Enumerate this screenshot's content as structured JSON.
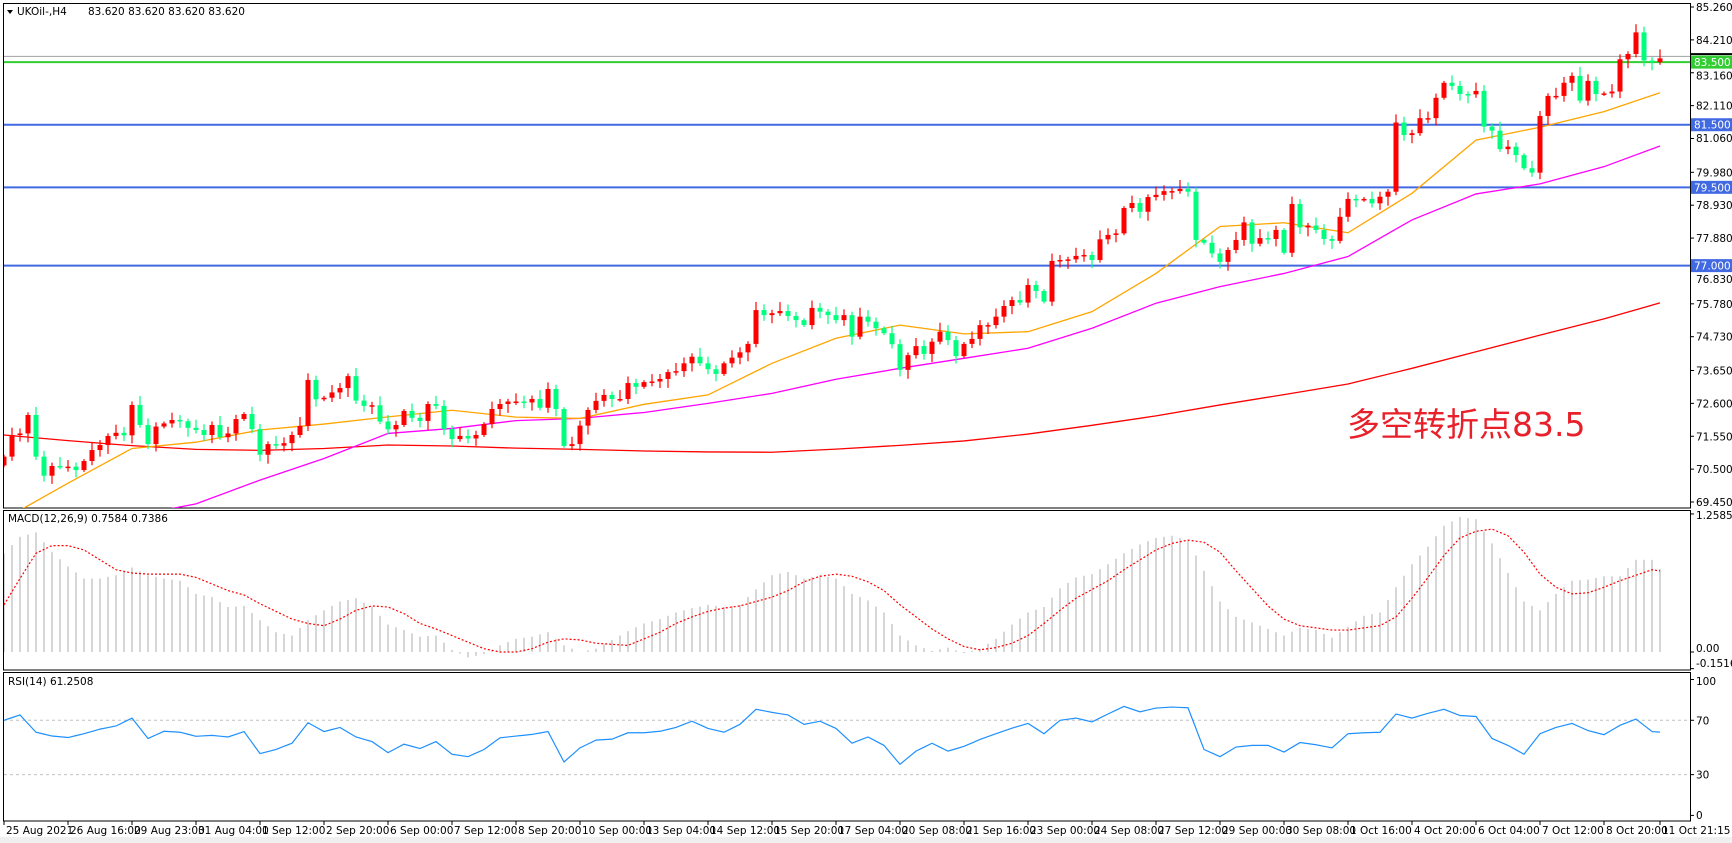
{
  "header": {
    "menu_icon": "triangle-down-icon",
    "symbol": "UKOil-,H4",
    "ohlc": "83.620 83.620 83.620 83.620"
  },
  "annotation": {
    "text": "多空转折点83.5",
    "color": "#e8202a"
  },
  "colors": {
    "bull_candle": "#ff0000",
    "bear_candle": "#00ff7f",
    "ma_fast": "#ffa500",
    "ma_mid": "#ff00ff",
    "ma_slow": "#ff0000",
    "level_line": "#4169e1",
    "pivot_line": "#32cd32",
    "macd_hist": "#c0c0c0",
    "macd_signal": "#ff0000",
    "rsi": "#1e90ff",
    "bid_line": "#a0a0a0"
  },
  "chart_data": [
    {
      "type": "candlestick",
      "panel": "main",
      "title": "UKOil-,H4",
      "ylim": [
        69.45,
        85.26
      ],
      "y_ticks": [
        "85.260",
        "84.210",
        "83.160",
        "82.110",
        "81.060",
        "79.980",
        "78.930",
        "77.880",
        "76.830",
        "75.780",
        "74.730",
        "73.650",
        "72.600",
        "71.550",
        "70.500",
        "69.450"
      ],
      "x_tick_labels": [
        "25 Aug 2021",
        "26 Aug 16:00",
        "29 Aug 23:00",
        "31 Aug 04:00",
        "1 Sep 12:00",
        "2 Sep 20:00",
        "6 Sep 00:00",
        "7 Sep 12:00",
        "8 Sep 20:00",
        "10 Sep 00:00",
        "13 Sep 04:00",
        "14 Sep 12:00",
        "15 Sep 20:00",
        "17 Sep 04:00",
        "20 Sep 08:00",
        "21 Sep 16:00",
        "23 Sep 00:00",
        "24 Sep 08:00",
        "27 Sep 12:00",
        "29 Sep 00:00",
        "30 Sep 08:00",
        "1 Oct 16:00",
        "4 Oct 20:00",
        "6 Oct 04:00",
        "7 Oct 12:00",
        "8 Oct 20:00",
        "11 Oct 21:15"
      ],
      "close": [
        70.9,
        71.59,
        71.64,
        72.23,
        70.9,
        70.29,
        70.6,
        70.58,
        70.58,
        70.47,
        70.76,
        71.11,
        71.27,
        71.56,
        71.66,
        71.58,
        72.55,
        71.91,
        71.3,
        71.86,
        71.96,
        72.07,
        72.03,
        71.82,
        71.75,
        71.59,
        71.91,
        71.52,
        71.64,
        72.1,
        72.26,
        71.78,
        70.96,
        71.3,
        71.25,
        71.33,
        71.59,
        71.88,
        73.35,
        72.73,
        72.78,
        72.95,
        73.09,
        73.47,
        72.69,
        72.52,
        72.54,
        72.02,
        71.77,
        71.91,
        72.36,
        72.14,
        72.04,
        72.58,
        72.52,
        71.78,
        71.46,
        71.56,
        71.48,
        71.59,
        71.94,
        72.42,
        72.58,
        72.66,
        72.66,
        72.63,
        72.74,
        72.46,
        73.06,
        72.42,
        71.24,
        71.3,
        71.89,
        72.39,
        72.68,
        72.87,
        72.74,
        72.74,
        73.25,
        73.13,
        73.28,
        73.3,
        73.38,
        73.6,
        73.63,
        73.88,
        74.09,
        73.88,
        73.69,
        73.54,
        73.88,
        74.06,
        74.23,
        74.5,
        75.58,
        75.42,
        75.48,
        75.55,
        75.39,
        75.26,
        75.1,
        75.65,
        75.53,
        75.42,
        75.26,
        75.42,
        74.73,
        75.37,
        75.21,
        75.0,
        74.84,
        74.49,
        73.67,
        74.14,
        74.43,
        74.18,
        74.57,
        74.89,
        74.62,
        74.11,
        74.5,
        74.66,
        75.1,
        75.1,
        75.37,
        75.71,
        75.9,
        75.82,
        76.38,
        76.19,
        75.85,
        77.15,
        77.18,
        77.2,
        77.31,
        77.34,
        77.18,
        77.84,
        77.98,
        78.03,
        78.84,
        79.0,
        78.72,
        79.19,
        79.26,
        79.38,
        79.38,
        79.45,
        79.36,
        77.82,
        77.73,
        77.39,
        77.12,
        77.5,
        77.82,
        78.38,
        77.7,
        77.88,
        77.85,
        78.14,
        77.41,
        78.97,
        78.22,
        78.28,
        78.14,
        77.85,
        77.79,
        78.56,
        79.13,
        79.1,
        79.13,
        78.99,
        79.2,
        79.36,
        81.57,
        81.17,
        81.23,
        81.71,
        81.71,
        82.36,
        82.84,
        82.74,
        82.48,
        82.47,
        82.58,
        81.44,
        81.31,
        80.72,
        80.8,
        80.53,
        80.11,
        79.97,
        81.78,
        82.42,
        82.42,
        82.84,
        83.06,
        82.27,
        82.9,
        82.48,
        82.5,
        82.56,
        83.59,
        83.76,
        84.45,
        83.55,
        83.5,
        83.62
      ],
      "moving_averages_at_x_ticks": {
        "fast": [
          68.9,
          70.05,
          71.16,
          71.36,
          71.75,
          71.94,
          72.17,
          72.38,
          72.16,
          72.12,
          72.57,
          72.87,
          73.88,
          74.68,
          75.1,
          74.82,
          74.89,
          75.53,
          76.75,
          78.25,
          78.37,
          78.05,
          79.31,
          81.01,
          81.42,
          81.92,
          82.52
        ],
        "mid": [
          67.5,
          68.3,
          69.0,
          69.39,
          70.15,
          70.84,
          71.64,
          71.8,
          72.05,
          72.12,
          72.31,
          72.6,
          72.92,
          73.37,
          73.72,
          74.04,
          74.36,
          75.0,
          75.8,
          76.33,
          76.75,
          77.29,
          78.46,
          79.29,
          79.61,
          80.16,
          80.82
        ],
        "slow": [
          71.59,
          71.41,
          71.25,
          71.13,
          71.1,
          71.16,
          71.27,
          71.24,
          71.17,
          71.13,
          71.08,
          71.05,
          71.04,
          71.14,
          71.26,
          71.4,
          71.62,
          71.9,
          72.2,
          72.55,
          72.88,
          73.22,
          73.72,
          74.25,
          74.78,
          75.3,
          75.81
        ]
      },
      "horizontal_levels": [
        {
          "value": 83.5,
          "label": "83.500",
          "kind": "pivot"
        },
        {
          "value": 81.5,
          "label": "81.500",
          "kind": "level"
        },
        {
          "value": 79.5,
          "label": "79.500",
          "kind": "level"
        },
        {
          "value": 77.0,
          "label": "77.000",
          "kind": "level"
        }
      ],
      "bid": 83.62
    },
    {
      "type": "bar+line",
      "panel": "macd",
      "title": "MACD(12,26,9) 0.7584 0.7386",
      "ylim": [
        -0.1516,
        1.2585
      ],
      "y_ticks": [
        "1.2585",
        "0.00",
        "-0.1516"
      ],
      "histogram": [
        0.9,
        1.05,
        1.09,
        0.91,
        0.78,
        0.67,
        0.67,
        0.7,
        0.77,
        0.7,
        0.67,
        0.65,
        0.53,
        0.5,
        0.41,
        0.42,
        0.29,
        0.18,
        0.15,
        0.29,
        0.38,
        0.46,
        0.49,
        0.41,
        0.25,
        0.2,
        0.14,
        0.15,
        0.02,
        -0.05,
        -0.02,
        0.06,
        0.12,
        0.14,
        0.18,
        0.06,
        0.0,
        0.03,
        0.11,
        0.19,
        0.26,
        0.3,
        0.36,
        0.4,
        0.43,
        0.41,
        0.43,
        0.57,
        0.7,
        0.73,
        0.67,
        0.7,
        0.67,
        0.53,
        0.47,
        0.36,
        0.15,
        0.06,
        0.01,
        0.04,
        -0.01,
        0.03,
        0.12,
        0.25,
        0.36,
        0.41,
        0.58,
        0.68,
        0.71,
        0.8,
        0.9,
        0.98,
        1.04,
        1.06,
        1.02,
        0.74,
        0.46,
        0.32,
        0.27,
        0.21,
        0.15,
        0.22,
        0.2,
        0.13,
        0.23,
        0.33,
        0.36,
        0.59,
        0.8,
        0.96,
        1.15,
        1.23,
        1.21,
        0.99,
        0.72,
        0.46,
        0.38,
        0.53,
        0.65,
        0.66,
        0.69,
        0.69,
        0.84,
        0.84,
        0.7584
      ],
      "signal": [
        0.43,
        0.67,
        0.9,
        0.97,
        0.97,
        0.93,
        0.84,
        0.75,
        0.72,
        0.71,
        0.71,
        0.71,
        0.68,
        0.62,
        0.56,
        0.52,
        0.44,
        0.37,
        0.3,
        0.26,
        0.24,
        0.3,
        0.38,
        0.42,
        0.41,
        0.35,
        0.26,
        0.21,
        0.15,
        0.09,
        0.03,
        0.0,
        0.0,
        0.03,
        0.09,
        0.12,
        0.11,
        0.08,
        0.07,
        0.06,
        0.12,
        0.18,
        0.26,
        0.32,
        0.37,
        0.4,
        0.42,
        0.46,
        0.5,
        0.56,
        0.64,
        0.69,
        0.71,
        0.69,
        0.64,
        0.56,
        0.43,
        0.32,
        0.21,
        0.12,
        0.05,
        0.02,
        0.04,
        0.08,
        0.15,
        0.26,
        0.38,
        0.49,
        0.57,
        0.65,
        0.75,
        0.84,
        0.93,
        0.99,
        1.02,
        1.0,
        0.91,
        0.74,
        0.58,
        0.42,
        0.3,
        0.24,
        0.22,
        0.2,
        0.2,
        0.22,
        0.24,
        0.32,
        0.49,
        0.68,
        0.88,
        1.04,
        1.1,
        1.12,
        1.06,
        0.91,
        0.71,
        0.59,
        0.53,
        0.54,
        0.59,
        0.65,
        0.7,
        0.75,
        0.7386
      ]
    },
    {
      "type": "line",
      "panel": "rsi",
      "title": "RSI(14) 61.2508",
      "ylim": [
        0,
        100
      ],
      "y_ticks": [
        "100",
        "70",
        "30",
        "0"
      ],
      "levels": [
        70,
        30
      ],
      "values": [
        70,
        73.9,
        61.2,
        58.4,
        57.3,
        60.1,
        63.5,
        65.8,
        71.6,
        56.6,
        61.9,
        61.2,
        58.2,
        58.9,
        57.7,
        61.7,
        45.5,
        48.5,
        53.1,
        68.2,
        61.7,
        64.7,
        57.7,
        54.3,
        46.2,
        52.4,
        49.2,
        54.3,
        45.0,
        43.2,
        48.5,
        57.1,
        58.4,
        59.6,
        61.7,
        39.3,
        49.7,
        55.4,
        56.1,
        60.8,
        60.8,
        61.9,
        64.7,
        69.3,
        64.0,
        61.2,
        67.0,
        78.1,
        75.8,
        73.9,
        67.0,
        69.3,
        64.0,
        53.1,
        57.7,
        51.5,
        37.6,
        47.3,
        53.1,
        47.3,
        50.8,
        55.9,
        60.1,
        64.2,
        67.7,
        60.1,
        70,
        71.6,
        68.8,
        74.6,
        80.2,
        76.2,
        79.0,
        79.7,
        79.2,
        48.5,
        43.2,
        50.3,
        51.5,
        51.5,
        46.6,
        53.6,
        52.0,
        49.7,
        60.1,
        60.8,
        61.2,
        74.6,
        71.6,
        75.1,
        78.1,
        73.5,
        72.8,
        56.6,
        51.5,
        45.0,
        60.1,
        64.7,
        67.7,
        62.4,
        59.4,
        66.3,
        70.9,
        61.7,
        61.2508
      ]
    }
  ]
}
